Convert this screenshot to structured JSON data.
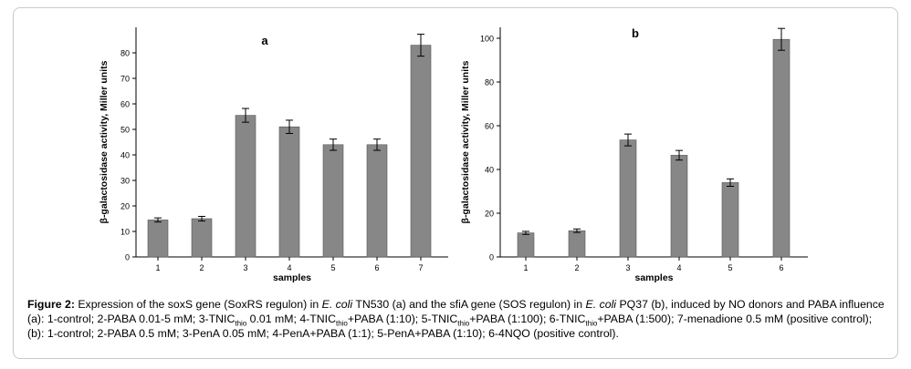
{
  "chart_data": [
    {
      "type": "bar",
      "panel_label": "a",
      "xlabel": "samples",
      "ylabel": "β-galactosidase activity, Miller units",
      "categories": [
        "1",
        "2",
        "3",
        "4",
        "5",
        "6",
        "7"
      ],
      "values": [
        14.5,
        15,
        55.5,
        51,
        44,
        44,
        83
      ],
      "errors": [
        0.8,
        0.9,
        2.7,
        2.6,
        2.2,
        2.2,
        4.3
      ],
      "ylim": [
        0,
        90
      ],
      "yticks": [
        0,
        10,
        20,
        30,
        40,
        50,
        60,
        70,
        80
      ],
      "bar_color": "#878787",
      "grid": false
    },
    {
      "type": "bar",
      "panel_label": "b",
      "xlabel": "samples",
      "ylabel": "β-galactosidase activity, Miller units",
      "categories": [
        "1",
        "2",
        "3",
        "4",
        "5",
        "6"
      ],
      "values": [
        11,
        12,
        53.5,
        46.5,
        34,
        99.5
      ],
      "errors": [
        0.7,
        0.8,
        2.7,
        2.2,
        1.7,
        5
      ],
      "ylim": [
        0,
        105
      ],
      "yticks": [
        0,
        20,
        40,
        60,
        80,
        100
      ],
      "bar_color": "#878787",
      "grid": false
    }
  ],
  "caption": {
    "figure_label": "Figure 2:",
    "t1": " Expression of the soxS gene (SoxRS regulon) in ",
    "ecoli": "E. coli",
    "t2": " TN530 (a) and the sfiA gene (SOS regulon) in ",
    "t3": " PQ37 (b), induced by NO donors and PABA influence (a): 1-control; 2-PABA 0.01-5 mM; 3-TNIC",
    "sub": "thio",
    "t4": " 0.01 mM; 4-TNIC",
    "t5": "+PABA (1:10); 5-TNIC",
    "t6": "+PABA (1:100); 6-TNIC",
    "t7": "+PABA (1:500); 7-menadione 0.5 mM (positive control); (b): 1-control; 2-PABA 0.5 mM; 3-PenA 0.05 mM; 4-PenA+PABA (1:1); 5-PenA+PABA (1:10); 6-4NQO (positive control)."
  }
}
